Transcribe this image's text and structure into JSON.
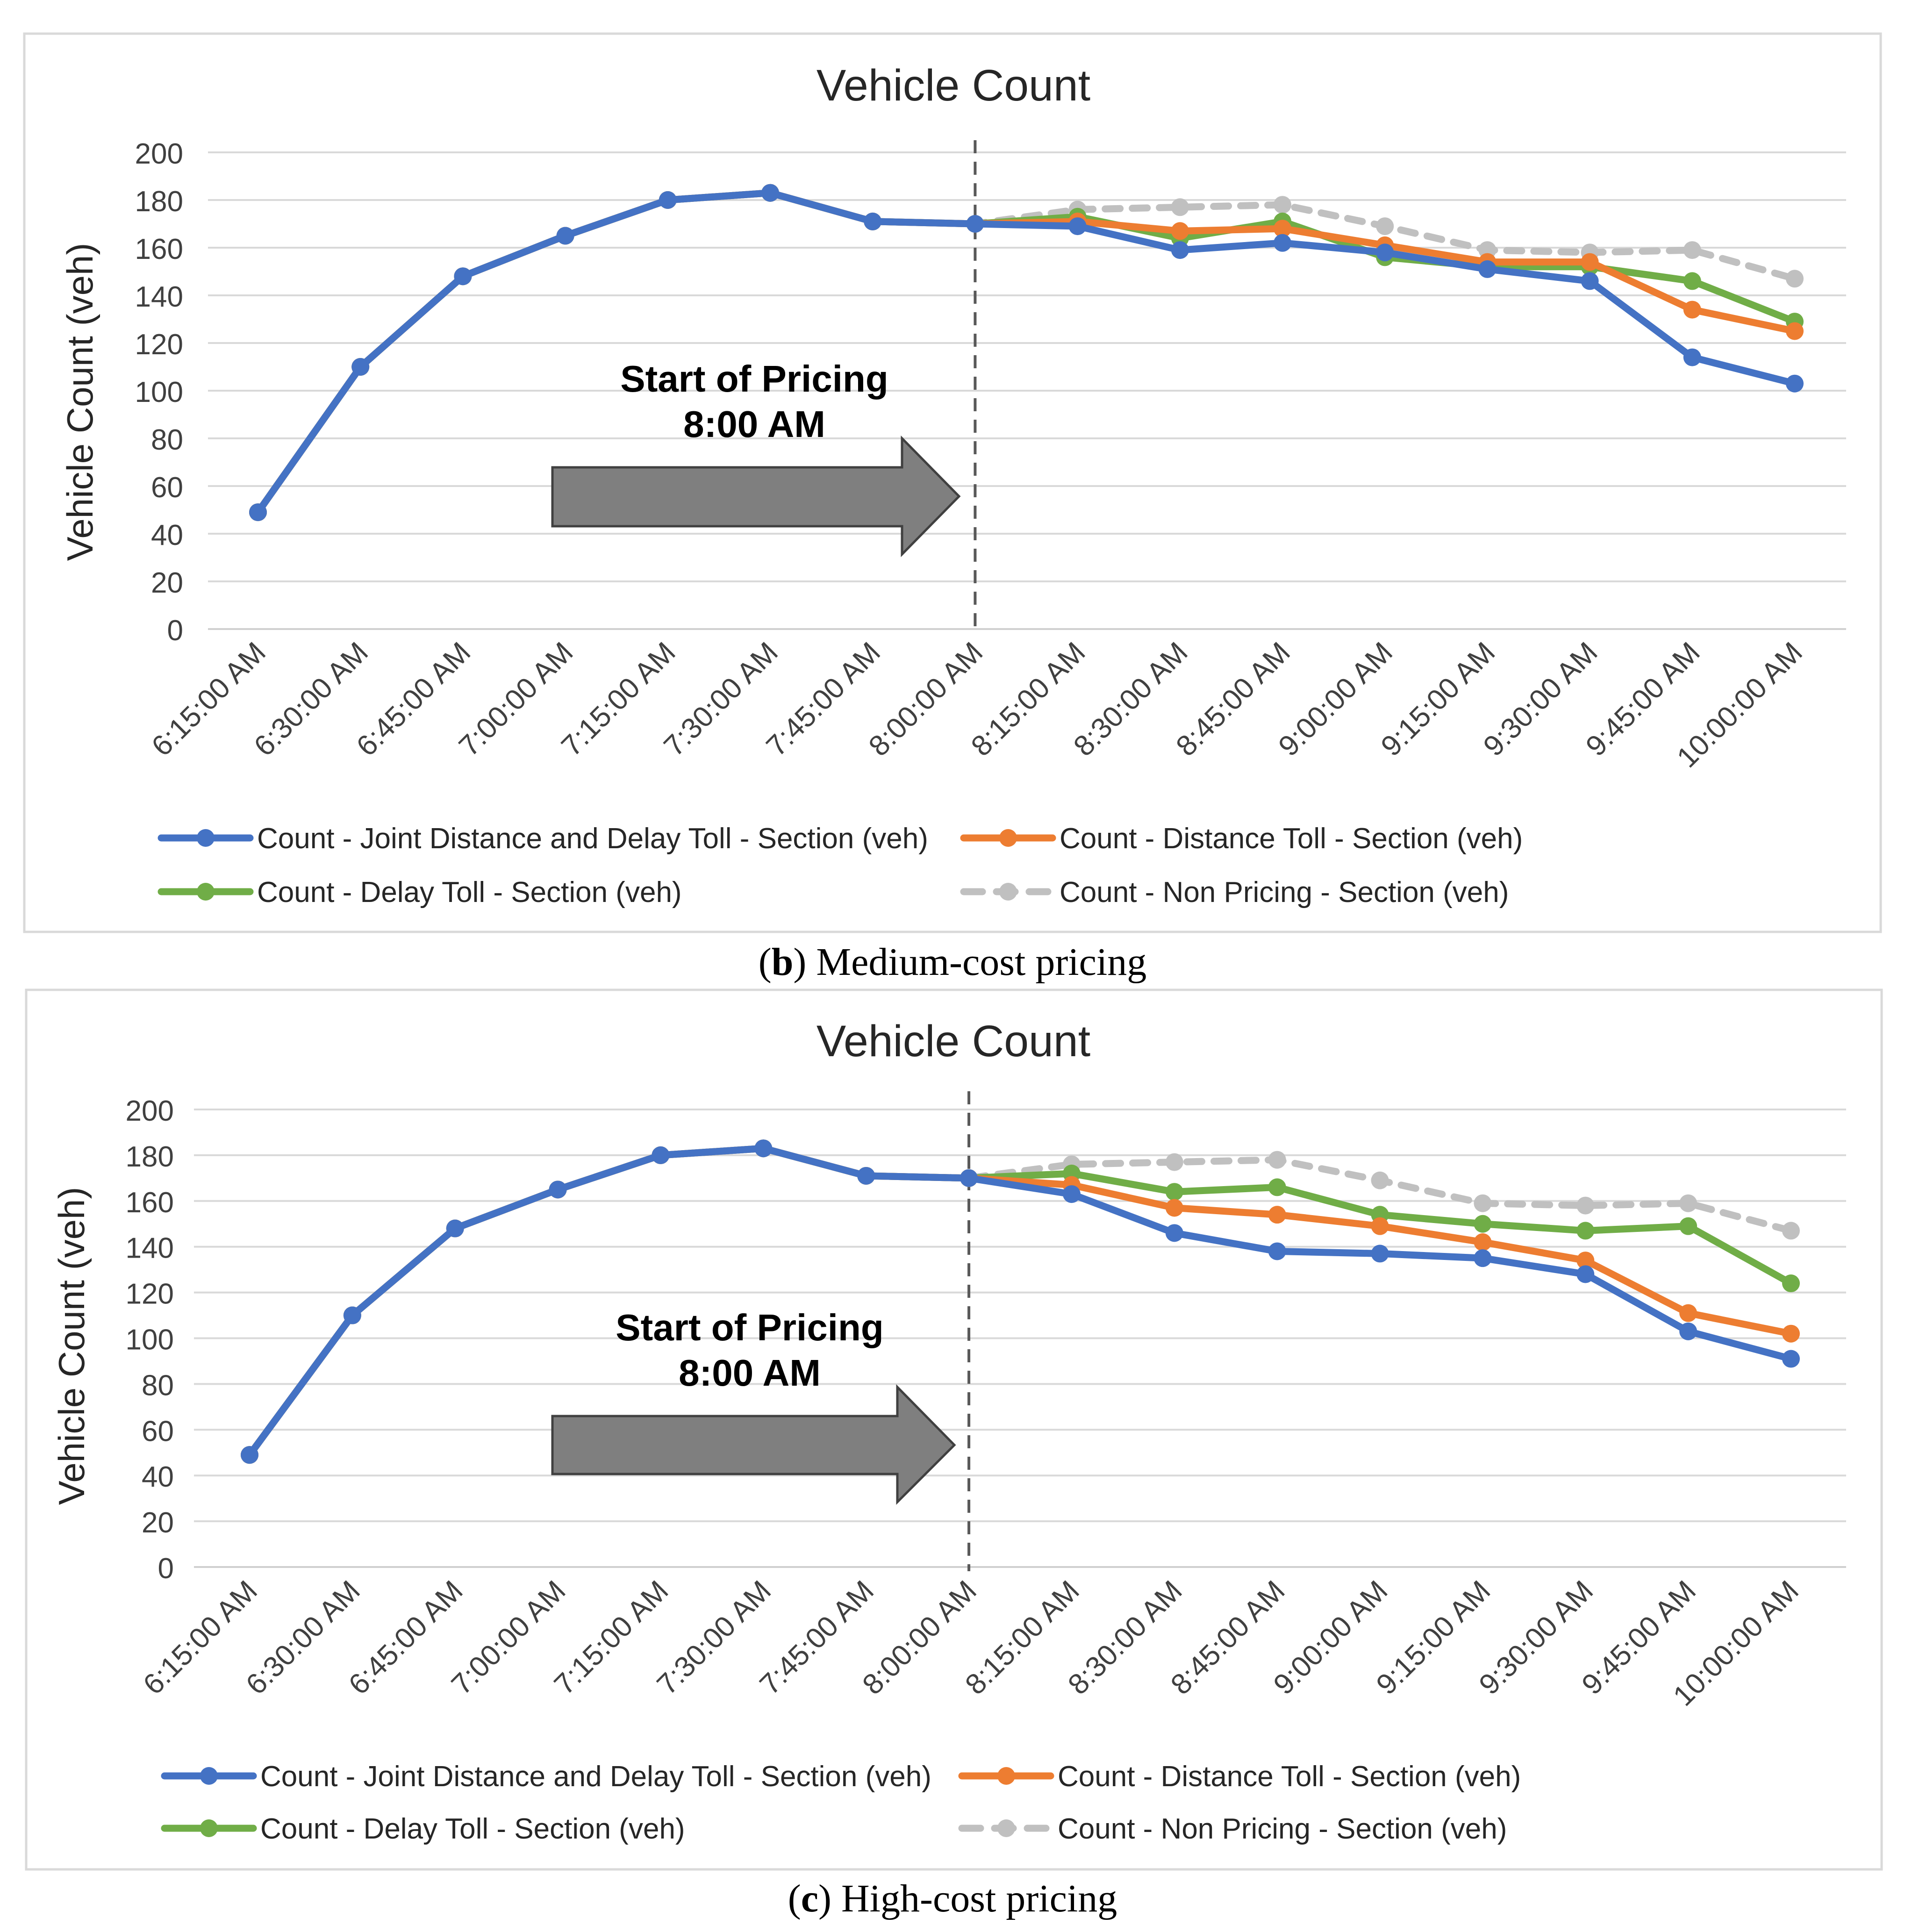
{
  "chart_data": [
    {
      "type": "line",
      "title": "Vehicle Count",
      "ylabel": "Vehicle Count (veh)",
      "xlabel": "",
      "ylim": [
        0,
        200
      ],
      "yticks": [
        0,
        20,
        40,
        60,
        80,
        100,
        120,
        140,
        160,
        180,
        200
      ],
      "categories": [
        "6:15:00 AM",
        "6:30:00 AM",
        "6:45:00 AM",
        "7:00:00 AM",
        "7:15:00 AM",
        "7:30:00 AM",
        "7:45:00 AM",
        "8:00:00 AM",
        "8:15:00 AM",
        "8:30:00 AM",
        "8:45:00 AM",
        "9:00:00 AM",
        "9:15:00 AM",
        "9:30:00 AM",
        "9:45:00 AM",
        "10:00:00 AM"
      ],
      "annotation": {
        "line1": "Start of Pricing",
        "line2": "8:00 AM",
        "at_category": "8:00:00 AM"
      },
      "legend_position": "bottom",
      "caption": {
        "label": "b",
        "text": ") Medium-cost pricing"
      },
      "series": [
        {
          "name": "Count - Joint Distance and Delay Toll - Section (veh)",
          "color": "#4472c4",
          "dashed": false,
          "values": [
            49,
            110,
            148,
            165,
            180,
            183,
            171,
            170,
            169,
            159,
            162,
            158,
            151,
            146,
            114,
            103
          ]
        },
        {
          "name": "Count - Distance Toll - Section (veh)",
          "color": "#ed7d31",
          "dashed": false,
          "values": [
            49,
            110,
            148,
            165,
            180,
            183,
            171,
            170,
            171,
            167,
            168,
            161,
            154,
            154,
            134,
            125
          ]
        },
        {
          "name": "Count - Delay Toll - Section (veh)",
          "color": "#70ad47",
          "dashed": false,
          "values": [
            49,
            110,
            148,
            165,
            180,
            183,
            171,
            170,
            173,
            164,
            171,
            156,
            152,
            152,
            146,
            129
          ]
        },
        {
          "name": "Count - Non Pricing - Section (veh)",
          "color": "#c0c0c0",
          "dashed": true,
          "values": [
            49,
            110,
            148,
            165,
            180,
            183,
            171,
            170,
            176,
            177,
            178,
            169,
            159,
            158,
            159,
            147
          ]
        }
      ]
    },
    {
      "type": "line",
      "title": "Vehicle Count",
      "ylabel": "Vehicle Count (veh)",
      "xlabel": "",
      "ylim": [
        0,
        200
      ],
      "yticks": [
        0,
        20,
        40,
        60,
        80,
        100,
        120,
        140,
        160,
        180,
        200
      ],
      "categories": [
        "6:15:00 AM",
        "6:30:00 AM",
        "6:45:00 AM",
        "7:00:00 AM",
        "7:15:00 AM",
        "7:30:00 AM",
        "7:45:00 AM",
        "8:00:00 AM",
        "8:15:00 AM",
        "8:30:00 AM",
        "8:45:00 AM",
        "9:00:00 AM",
        "9:15:00 AM",
        "9:30:00 AM",
        "9:45:00 AM",
        "10:00:00 AM"
      ],
      "annotation": {
        "line1": "Start of Pricing",
        "line2": "8:00 AM",
        "at_category": "8:00:00 AM"
      },
      "legend_position": "bottom",
      "caption": {
        "label": "c",
        "text": ") High-cost pricing"
      },
      "series": [
        {
          "name": "Count - Joint Distance and Delay Toll - Section (veh)",
          "color": "#4472c4",
          "dashed": false,
          "values": [
            49,
            110,
            148,
            165,
            180,
            183,
            171,
            170,
            163,
            146,
            138,
            137,
            135,
            128,
            103,
            91
          ]
        },
        {
          "name": "Count - Distance Toll - Section (veh)",
          "color": "#ed7d31",
          "dashed": false,
          "values": [
            49,
            110,
            148,
            165,
            180,
            183,
            171,
            170,
            167,
            157,
            154,
            149,
            142,
            134,
            111,
            102
          ]
        },
        {
          "name": "Count - Delay Toll - Section (veh)",
          "color": "#70ad47",
          "dashed": false,
          "values": [
            49,
            110,
            148,
            165,
            180,
            183,
            171,
            170,
            172,
            164,
            166,
            154,
            150,
            147,
            149,
            124
          ]
        },
        {
          "name": "Count - Non Pricing - Section (veh)",
          "color": "#c0c0c0",
          "dashed": true,
          "values": [
            49,
            110,
            148,
            165,
            180,
            183,
            171,
            170,
            176,
            177,
            178,
            169,
            159,
            158,
            159,
            147
          ]
        }
      ]
    }
  ]
}
